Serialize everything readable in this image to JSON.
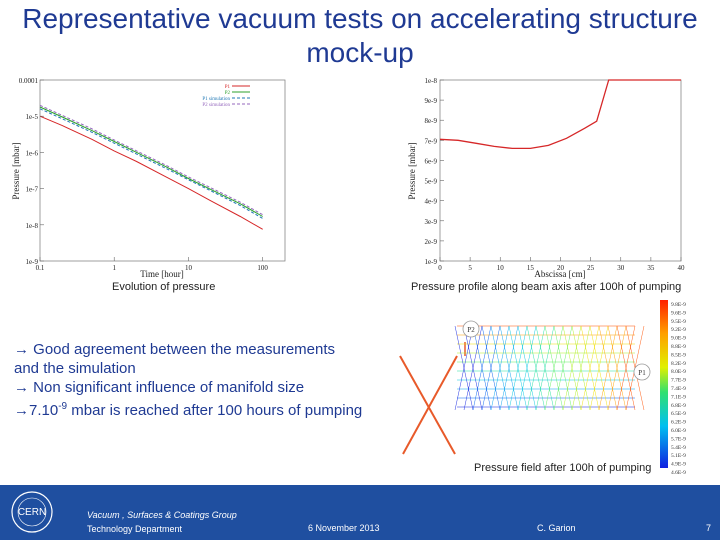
{
  "title": "Representative vacuum tests on accelerating structure mock-up",
  "chart_data": [
    {
      "type": "line",
      "xlabel": "Time [hour]",
      "ylabel": "Pressure [mbar]",
      "xscale": "log",
      "yscale": "log",
      "xlim": [
        0.1,
        200
      ],
      "ylim": [
        1e-09,
        0.0001
      ],
      "x_ticks": [
        "0.1",
        "1",
        "10",
        "100"
      ],
      "y_ticks": [
        "0.0001",
        "1e-5",
        "1e-6",
        "1e-7",
        "1e-8",
        "1e-9"
      ],
      "legend_position": "top-right",
      "series": [
        {
          "name": "P1",
          "color": "#d62728",
          "style": "solid",
          "x": [
            0.1,
            0.2,
            0.5,
            1,
            2,
            5,
            10,
            20,
            50,
            100
          ],
          "y": [
            1e-05,
            5.5e-06,
            2.3e-06,
            1.1e-06,
            5.6e-07,
            2.1e-07,
            1e-07,
            4.6e-08,
            1.7e-08,
            7.5e-09
          ]
        },
        {
          "name": "P2",
          "color": "#2ca02c",
          "style": "solid",
          "x": [
            0.1,
            0.2,
            0.5,
            1,
            2,
            5,
            10,
            20,
            50,
            100
          ],
          "y": [
            1.8e-05,
            9.5e-06,
            4e-06,
            2e-06,
            1e-06,
            4e-07,
            1.9e-07,
            9.5e-08,
            3.8e-08,
            1.7e-08
          ]
        },
        {
          "name": "P1 simulation",
          "color": "#1f77b4",
          "style": "dashed",
          "x": [
            0.1,
            0.2,
            0.5,
            1,
            2,
            5,
            10,
            20,
            50,
            100
          ],
          "y": [
            1.6e-05,
            8.5e-06,
            3.6e-06,
            1.8e-06,
            9e-07,
            3.6e-07,
            1.75e-07,
            8.7e-08,
            3.4e-08,
            1.5e-08
          ]
        },
        {
          "name": "P2 simulation",
          "color": "#9467bd",
          "style": "dashed",
          "x": [
            0.1,
            0.2,
            0.5,
            1,
            2,
            5,
            10,
            20,
            50,
            100
          ],
          "y": [
            2e-05,
            1.05e-05,
            4.5e-06,
            2.2e-06,
            1.1e-06,
            4.4e-07,
            2.1e-07,
            1.05e-07,
            4.2e-08,
            1.9e-08
          ]
        }
      ]
    },
    {
      "type": "line",
      "xlabel": "Abscissa [cm]",
      "ylabel": "Pressure [mbar]",
      "xlim": [
        0,
        40
      ],
      "ylim": [
        1e-09,
        1e-08
      ],
      "x_ticks": [
        "0",
        "5",
        "10",
        "15",
        "20",
        "25",
        "30",
        "35",
        "40"
      ],
      "y_ticks": [
        "1e-8",
        "9e-9",
        "8e-9",
        "7e-9",
        "6e-9",
        "5e-9",
        "4e-9",
        "3e-9",
        "2e-9",
        "1e-9"
      ],
      "series": [
        {
          "color": "#d62728",
          "x": [
            0,
            3,
            6,
            9,
            12,
            15,
            18,
            21,
            24,
            26,
            28,
            30,
            35,
            40
          ],
          "y": [
            7.05e-09,
            7e-09,
            6.85e-09,
            6.7e-09,
            6.6e-09,
            6.6e-09,
            6.75e-09,
            7.1e-09,
            7.6e-09,
            7.95e-09,
            1e-08,
            1e-08,
            1e-08,
            1e-08
          ]
        }
      ]
    }
  ],
  "captions": {
    "left": "Evolution of pressure",
    "right": "Pressure profile along beam axis after 100h of pumping",
    "field": "Pressure field after 100h of pumping"
  },
  "bullets": {
    "b1": "→ Good agreement between the measurements and the simulation",
    "b2": "→ Non significant influence of manifold size",
    "b3_prefix": "→7.10",
    "b3_sup": "-9",
    "b3_suffix": " mbar is reached after 100 hours of pumping"
  },
  "field_figure": {
    "label_p2": "P2",
    "label_p1": "P1",
    "scale_labels": [
      "9.8E-9",
      "9.6E-9",
      "9.5E-9",
      "9.2E-9",
      "9.0E-9",
      "8.8E-9",
      "8.5E-9",
      "8.2E-9",
      "8.0E-9",
      "7.7E-9",
      "7.4E-9",
      "7.1E-9",
      "6.8E-9",
      "6.5E-9",
      "6.2E-9",
      "6.0E-9",
      "5.7E-9",
      "5.4E-9",
      "5.1E-9",
      "4.9E-9",
      "4.6E-9"
    ]
  },
  "footer": {
    "logo": "CERN",
    "group": "Vacuum , Surfaces & Coatings Group",
    "dept": "Technology Department",
    "date": "6 November 2013",
    "author": "C. Garion",
    "page": "7"
  }
}
